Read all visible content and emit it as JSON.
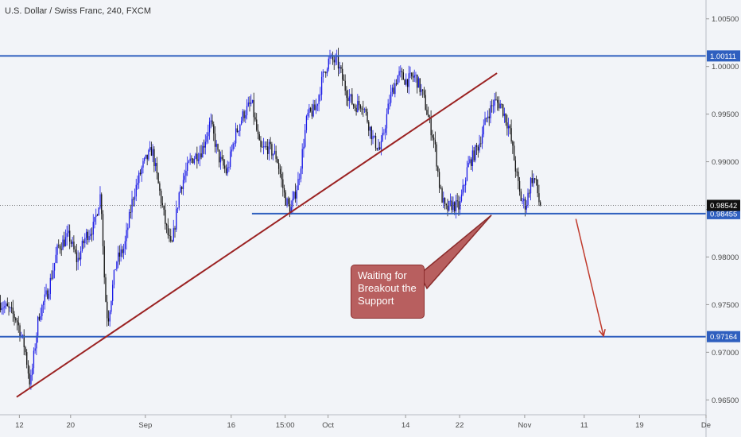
{
  "header": {
    "symbol_title": "U.S. Dollar / Swiss Franc, 240, FXCM"
  },
  "annotation": {
    "callout_text": "Waiting for Breakout the Support"
  },
  "colors": {
    "background": "#f2f4f8",
    "up_candle": "#1a1ae6",
    "down_candle": "#111111",
    "level_line": "#2f5fbf",
    "trendline": "#9b2222",
    "arrow": "#c0392b",
    "callout_fill": "#b85f5f",
    "current_price_tag": "#111111"
  },
  "chart_data": {
    "type": "candlestick",
    "title": "U.S. Dollar / Swiss Franc, 240, FXCM",
    "ylim": [
      0.96344,
      1.00698
    ],
    "price_ticks": [
      "1.00500",
      "1.00000",
      "0.99500",
      "0.99000",
      "0.98500",
      "0.98000",
      "0.97500",
      "0.97000",
      "0.96500"
    ],
    "price_tick_values": [
      1.005,
      1.0,
      0.995,
      0.99,
      0.985,
      0.98,
      0.975,
      0.97,
      0.965
    ],
    "date_ticks": [
      "12",
      "20",
      "Sep",
      "16",
      "15:00",
      "Oct",
      "14",
      "22",
      "Nov",
      "11",
      "19",
      "De"
    ],
    "date_tick_bars": [
      14,
      51,
      105,
      167,
      206,
      237,
      293,
      332,
      379,
      422,
      462,
      510
    ],
    "total_bars": 510,
    "horizontal_levels": [
      {
        "price": 1.00111,
        "label": "1.00111",
        "from_bar": 0
      },
      {
        "price": 0.98455,
        "label": "0.98455",
        "from_bar": 182
      },
      {
        "price": 0.97164,
        "label": "0.97164",
        "from_bar": 0
      }
    ],
    "current_price": {
      "price": 0.98542,
      "label": "0.98542"
    },
    "trendline": {
      "from": [
        12,
        0.9653
      ],
      "to": [
        359,
        0.9993
      ]
    },
    "callout_pointer_to": [
      355,
      0.9844
    ],
    "forecast_arrow": {
      "from": [
        416,
        0.984
      ],
      "to": [
        436,
        0.9717
      ]
    },
    "swing_path": [
      [
        0,
        0.9752
      ],
      [
        6,
        0.9745
      ],
      [
        12,
        0.9735
      ],
      [
        18,
        0.9705
      ],
      [
        22,
        0.9665
      ],
      [
        28,
        0.9738
      ],
      [
        35,
        0.9765
      ],
      [
        42,
        0.981
      ],
      [
        50,
        0.9822
      ],
      [
        56,
        0.9795
      ],
      [
        62,
        0.9822
      ],
      [
        68,
        0.9832
      ],
      [
        73,
        0.9868
      ],
      [
        76,
        0.9762
      ],
      [
        78,
        0.9732
      ],
      [
        84,
        0.9795
      ],
      [
        90,
        0.981
      ],
      [
        96,
        0.9862
      ],
      [
        103,
        0.9895
      ],
      [
        110,
        0.9913
      ],
      [
        114,
        0.988
      ],
      [
        120,
        0.9832
      ],
      [
        124,
        0.9808
      ],
      [
        130,
        0.9872
      ],
      [
        138,
        0.9902
      ],
      [
        146,
        0.9912
      ],
      [
        152,
        0.9942
      ],
      [
        158,
        0.9905
      ],
      [
        164,
        0.9888
      ],
      [
        170,
        0.9928
      ],
      [
        176,
        0.995
      ],
      [
        182,
        0.9962
      ],
      [
        188,
        0.9912
      ],
      [
        194,
        0.9915
      ],
      [
        200,
        0.9905
      ],
      [
        206,
        0.9862
      ],
      [
        210,
        0.9848
      ],
      [
        216,
        0.9882
      ],
      [
        222,
        0.9948
      ],
      [
        228,
        0.9955
      ],
      [
        234,
        0.9993
      ],
      [
        238,
        1.0008
      ],
      [
        244,
        1.0004
      ],
      [
        250,
        0.9975
      ],
      [
        256,
        0.9958
      ],
      [
        262,
        0.9962
      ],
      [
        270,
        0.9922
      ],
      [
        275,
        0.9912
      ],
      [
        282,
        0.9968
      ],
      [
        288,
        0.9992
      ],
      [
        294,
        0.9985
      ],
      [
        300,
        0.999
      ],
      [
        306,
        0.9968
      ],
      [
        310,
        0.9943
      ],
      [
        314,
        0.992
      ],
      [
        318,
        0.987
      ],
      [
        322,
        0.9848
      ],
      [
        326,
        0.9855
      ],
      [
        332,
        0.9852
      ],
      [
        338,
        0.9895
      ],
      [
        346,
        0.9918
      ],
      [
        352,
        0.9948
      ],
      [
        357,
        0.9963
      ],
      [
        362,
        0.996
      ],
      [
        368,
        0.9935
      ],
      [
        372,
        0.9898
      ],
      [
        376,
        0.9862
      ],
      [
        380,
        0.9854
      ],
      [
        384,
        0.9883
      ],
      [
        387,
        0.988
      ],
      [
        390,
        0.9854
      ]
    ]
  }
}
